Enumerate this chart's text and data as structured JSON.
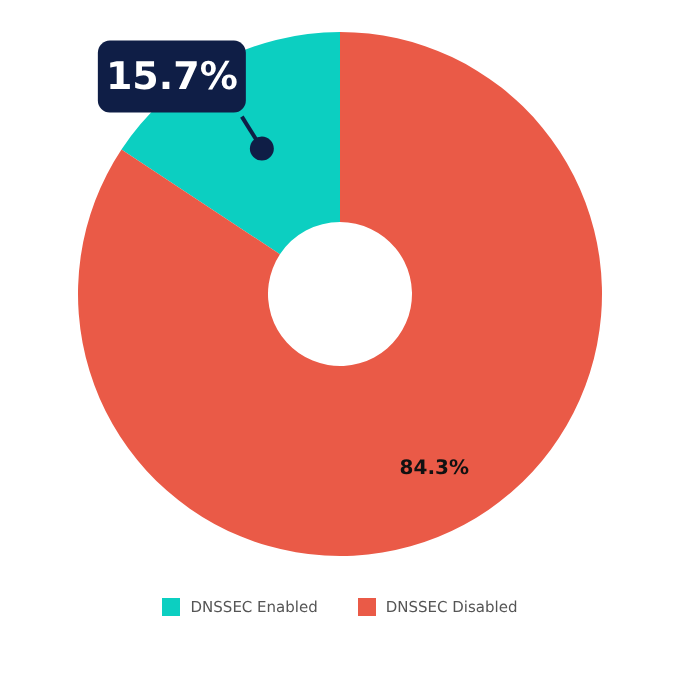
{
  "chart_data": {
    "type": "donut",
    "categories": [
      "DNSSEC Enabled",
      "DNSSEC Disabled"
    ],
    "values": [
      15.7,
      84.3
    ],
    "colors": [
      "#0ccfc1",
      "#ea5a47"
    ],
    "value_labels": [
      "15.7%",
      "84.3%"
    ],
    "legend": "bottom"
  }
}
